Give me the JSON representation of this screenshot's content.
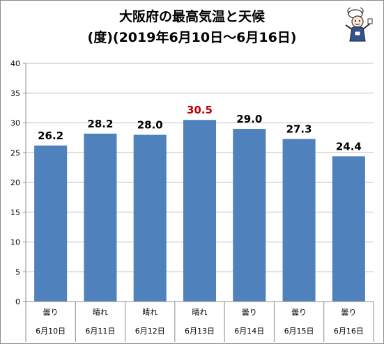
{
  "title": {
    "line1": "大阪府の最高気温と天候",
    "line2": "(度)(2019年6月10日～6月16日)"
  },
  "colors": {
    "bar": "#4f81bd",
    "label_default": "#000000",
    "label_highlight": "#c00000",
    "grid": "#bfbfbf",
    "axis": "#8c8c8c"
  },
  "chart_data": {
    "type": "bar",
    "title": "大阪府の最高気温と天候",
    "subtitle": "(度)(2019年6月10日～6月16日)",
    "categories": [
      "6月10日",
      "6月11日",
      "6月12日",
      "6月13日",
      "6月14日",
      "6月15日",
      "6月16日"
    ],
    "weather": [
      "曇り",
      "晴れ",
      "晴れ",
      "晴れ",
      "曇り",
      "曇り",
      "曇り"
    ],
    "values": [
      26.2,
      28.2,
      28.0,
      30.5,
      29.0,
      27.3,
      24.4
    ],
    "data_labels": [
      "26.2",
      "28.2",
      "28.0",
      "30.5",
      "29.0",
      "27.3",
      "24.4"
    ],
    "highlight_index": 3,
    "ylim": [
      0,
      40
    ],
    "yticks": [
      0,
      5,
      10,
      15,
      20,
      25,
      30,
      35,
      40
    ],
    "ytick_labels": [
      "0",
      "5",
      "10",
      "15",
      "20",
      "25",
      "30",
      "35",
      "40"
    ],
    "grid": true,
    "legend": "none"
  }
}
